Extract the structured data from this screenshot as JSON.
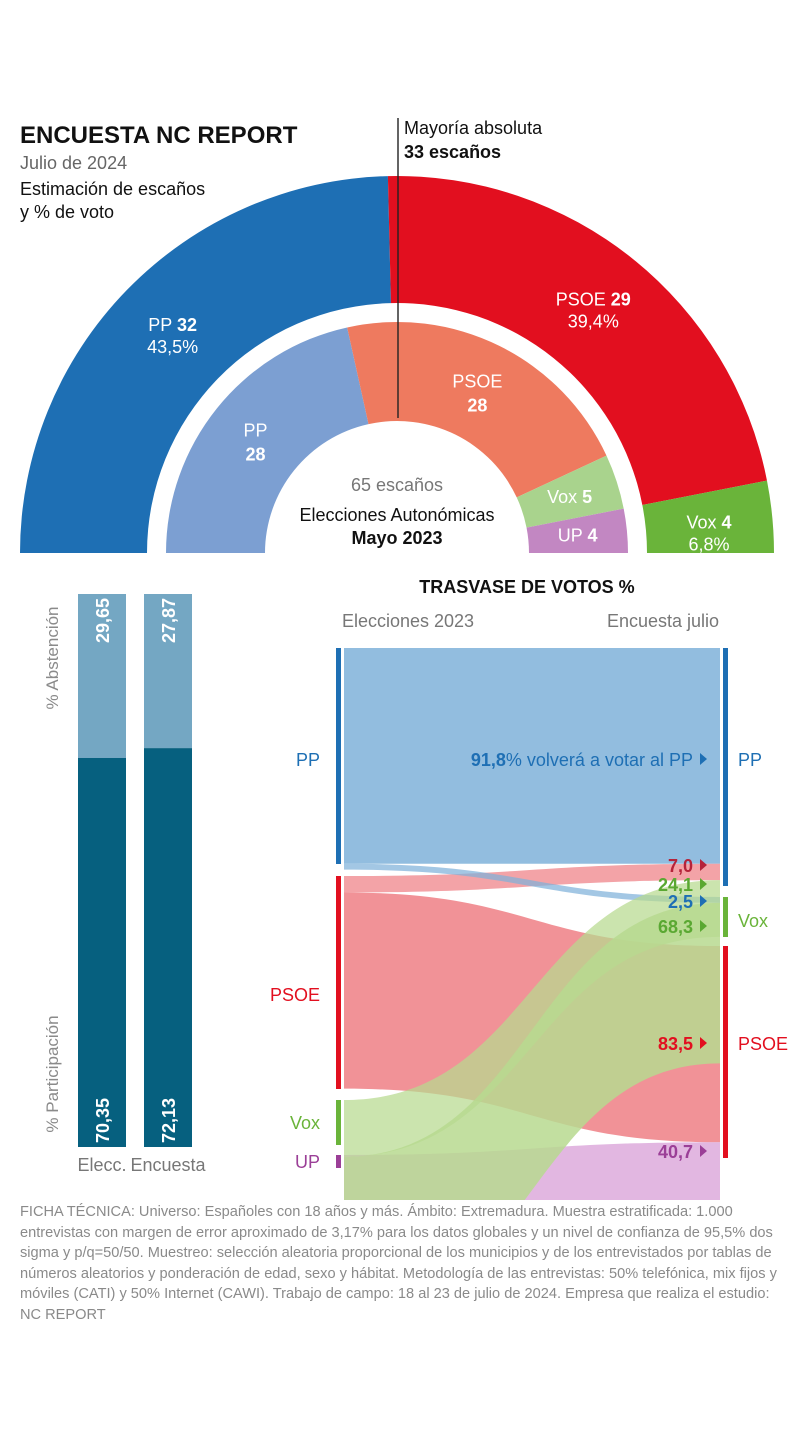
{
  "title": "ENCUESTA NC REPORT",
  "subtitle": "Julio de 2024",
  "description_line1": "Estimación de escaños",
  "description_line2": "y % de voto",
  "majority_label": "Mayoría absoluta",
  "majority_value": "33 escaños",
  "colors": {
    "pp": "#1e6fb4",
    "pp_light": "#7c9fd2",
    "psoe": "#e20f1f",
    "psoe_light": "#ee7a5f",
    "vox": "#6ab43a",
    "vox_light": "#a9d38d",
    "up": "#c287c2",
    "turnout_dark": "#06607f",
    "turnout_light": "#74a7c3"
  },
  "chart_data": [
    {
      "type": "pie",
      "name": "encuesta",
      "title": "Estimación de escaños y % de voto",
      "total_seats": 65,
      "majority_seats": 33,
      "segments": [
        {
          "party": "PP",
          "seats": 32,
          "pct": "43,5%",
          "color": "#1e6fb4",
          "textColor": "#ffffff"
        },
        {
          "party": "PSOE",
          "seats": 29,
          "pct": "39,4%",
          "color": "#e20f1f",
          "textColor": "#ffffff"
        },
        {
          "party": "Vox",
          "seats": 4,
          "pct": "6,8%",
          "color": "#6ab43a",
          "textColor": "#ffffff"
        }
      ]
    },
    {
      "type": "pie",
      "name": "elecciones",
      "total_label": "65 escaños",
      "caption_line1": "Elecciones Autonómicas",
      "caption_line2": "Mayo 2023",
      "segments": [
        {
          "party": "PP",
          "seats": 28,
          "color": "#7c9fd2",
          "textColor": "#ffffff"
        },
        {
          "party": "PSOE",
          "seats": 28,
          "color": "#ee7a5f",
          "textColor": "#ffffff"
        },
        {
          "party": "Vox",
          "seats": 5,
          "color": "#a9d38d",
          "textColor": "#ffffff"
        },
        {
          "party": "UP",
          "seats": 4,
          "color": "#c287c2",
          "textColor": "#ffffff"
        }
      ]
    },
    {
      "type": "bar",
      "name": "participacion",
      "categories": [
        "Elecc.",
        "Encuesta"
      ],
      "series": [
        {
          "name": "% Participación",
          "values": [
            70.35,
            72.13
          ],
          "labels": [
            "70,35",
            "72,13"
          ],
          "color": "#06607f"
        },
        {
          "name": "% Abstención",
          "values": [
            29.65,
            27.87
          ],
          "labels": [
            "29,65",
            "27,87"
          ],
          "color": "#74a7c3"
        }
      ],
      "ylim": [
        0,
        100
      ]
    },
    {
      "type": "sankey",
      "name": "trasvase",
      "title": "TRASVASE DE VOTOS %",
      "left_header": "Elecciones 2023",
      "right_header": "Encuesta julio",
      "sources": [
        {
          "party": "PP",
          "color": "#1e6fb4"
        },
        {
          "party": "PSOE",
          "color": "#e20f1f"
        },
        {
          "party": "Vox",
          "color": "#6ab43a"
        },
        {
          "party": "UP",
          "color": "#9b3f97"
        }
      ],
      "targets": [
        {
          "party": "PP",
          "color": "#1e6fb4"
        },
        {
          "party": "Vox",
          "color": "#6ab43a"
        },
        {
          "party": "PSOE",
          "color": "#e20f1f"
        }
      ],
      "flows": [
        {
          "from": "PP",
          "to": "PP",
          "value": 91.8
        },
        {
          "from": "PP",
          "to": "Vox",
          "value": 2.5
        },
        {
          "from": "PSOE",
          "to": "PP",
          "value": 7.0
        },
        {
          "from": "PSOE",
          "to": "PSOE",
          "value": 83.5
        },
        {
          "from": "Vox",
          "to": "PP",
          "value": 24.1
        },
        {
          "from": "Vox",
          "to": "Vox",
          "value": 68.3
        },
        {
          "from": "UP",
          "to": "PSOE",
          "value": 40.7
        }
      ],
      "annotation_value": "91,8",
      "annotation_text": "% volverá a votar al PP",
      "labels": [
        {
          "value": "7,0",
          "color": "#b5233a"
        },
        {
          "value": "24,1",
          "color": "#5aa832"
        },
        {
          "value": "2,5",
          "color": "#1e6fb4"
        },
        {
          "value": "68,3",
          "color": "#5aa832"
        },
        {
          "value": "83,5",
          "color": "#e20f1f"
        },
        {
          "value": "40,7",
          "color": "#9b3f97"
        }
      ]
    }
  ],
  "footnote": "FICHA TÉCNICA: Universo: Españoles con 18 años y más. Ámbito: Extremadura. Muestra estratificada: 1.000 entrevistas con margen de error aproximado de 3,17% para los datos globales y un nivel de confianza de 95,5% dos sigma y p/q=50/50. Muestreo: selección aleatoria proporcional de los municipios y de los entrevistados por tablas de números aleatorios y ponderación de edad, sexo y hábitat. Metodología de las entrevistas: 50% telefónica, mix fijos y móviles (CATI) y 50% Internet (CAWI). Trabajo de campo: 18 al 23 de julio de 2024. Empresa que realiza el estudio: NC REPORT"
}
